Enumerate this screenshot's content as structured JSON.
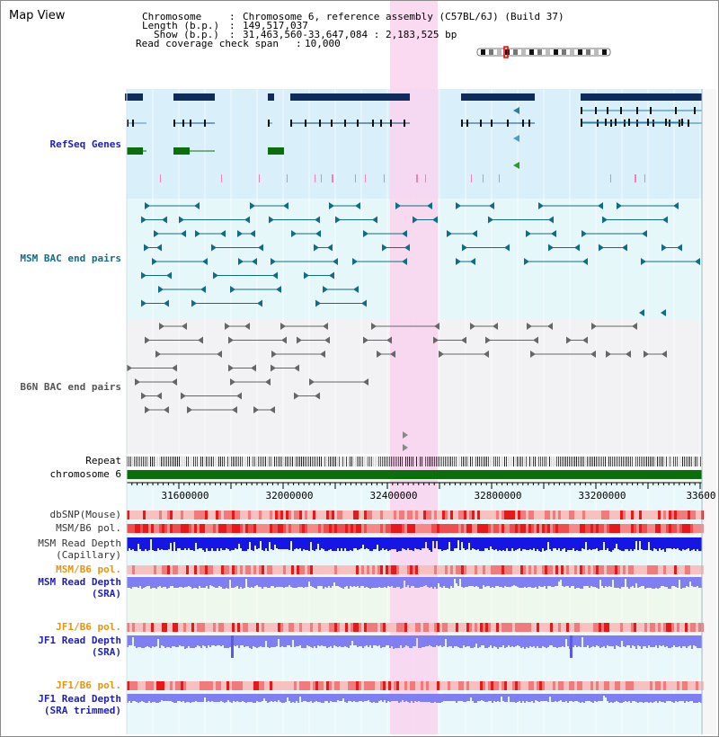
{
  "view_title": "Map View",
  "info": {
    "chromosome_label": "Chromosome",
    "chromosome_value": "Chromosome 6, reference assembly (C57BL/6J) (Build 37)",
    "length_label": "Length (b.p.)",
    "length_value": "149,517,037",
    "show_label": "Show (b.p.)",
    "show_value": "31,463,560-33,647,084 : 2,183,525 bp",
    "coverage_label": "Read coverage check span",
    "coverage_value": "10,000"
  },
  "tracks": {
    "refseq": "RefSeq Genes",
    "msm_bac": "MSM BAC end pairs",
    "b6n_bac": "B6N BAC end pairs",
    "repeat": "Repeat",
    "chromosome": "chromosome 6",
    "dbsnp": "dbSNP(Mouse)",
    "msm_b6_pol_1": "MSM/B6 pol.",
    "msm_depth_cap_1": "MSM Read Depth",
    "msm_depth_cap_2": "(Capillary)",
    "msm_b6_pol_2": "MSM/B6 pol.",
    "msm_depth_sra_1": "MSM Read Depth",
    "msm_depth_sra_2": "(SRA)",
    "jf1_pol_1": "JF1/B6 pol.",
    "jf1_depth_1": "JF1 Read Depth",
    "jf1_depth_1b": "(SRA)",
    "jf1_pol_2": "JF1/B6 pol.",
    "jf1_depth_2": "JF1 Read Depth",
    "jf1_depth_2b": "(SRA trimmed)"
  },
  "axis_ticks": [
    "31600000",
    "32000000",
    "32400000",
    "32800000",
    "33200000",
    "33600"
  ],
  "colors": {
    "highlight": "#f9d3ee",
    "refseq_bg": "#d9effa",
    "bac_bg": "#e6f7f9",
    "b6n_bg": "#f2f2f4",
    "gene_navy": "#0f2b5c",
    "chromosome_green": "#0a6e0a",
    "depth_blue": "#1515e6",
    "depth_light": "#7f7ff3"
  }
}
